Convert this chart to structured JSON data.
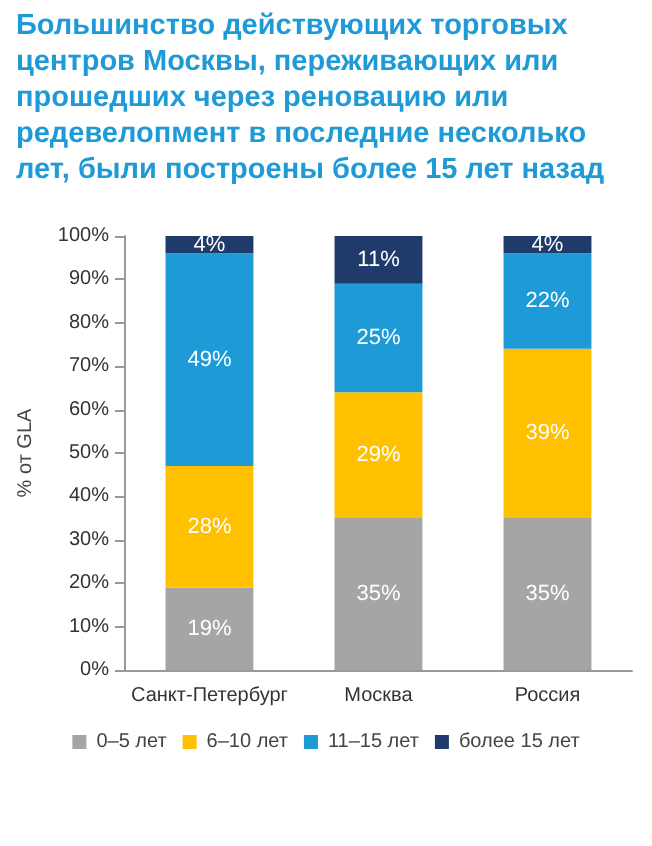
{
  "chart_data": {
    "type": "bar",
    "stacked": true,
    "title": "Большинство действующих торговых центров Москвы, переживающих или прошедших через реновацию или редевелопмент в последние несколько лет, были построены более 15 лет назад",
    "ylabel": "% от GLA",
    "categories": [
      "Санкт-Петербург",
      "Москва",
      "Россия"
    ],
    "series": [
      {
        "name": "0–5 лет",
        "color": "#a5a5a5",
        "values": [
          19,
          35,
          35
        ],
        "value_labels": [
          "19%",
          "35%",
          "35%"
        ]
      },
      {
        "name": "6–10 лет",
        "color": "#ffc000",
        "values": [
          28,
          29,
          39
        ],
        "value_labels": [
          "28%",
          "29%",
          "39%"
        ]
      },
      {
        "name": "11–15 лет",
        "color": "#1e9bd7",
        "values": [
          49,
          25,
          22
        ],
        "value_labels": [
          "49%",
          "25%",
          "22%"
        ]
      },
      {
        "name": "более 15 лет",
        "color": "#1f3b6b",
        "values": [
          4,
          11,
          4
        ],
        "value_labels": [
          "4%",
          "11%",
          "4%"
        ]
      }
    ],
    "ylim": [
      0,
      100
    ],
    "yticks": [
      {
        "value": 0,
        "label": "0%"
      },
      {
        "value": 10,
        "label": "10%"
      },
      {
        "value": 20,
        "label": "20%"
      },
      {
        "value": 30,
        "label": "30%"
      },
      {
        "value": 40,
        "label": "40%"
      },
      {
        "value": 50,
        "label": "50%"
      },
      {
        "value": 60,
        "label": "60%"
      },
      {
        "value": 70,
        "label": "70%"
      },
      {
        "value": 80,
        "label": "80%"
      },
      {
        "value": 90,
        "label": "90%"
      },
      {
        "value": 100,
        "label": "100%"
      }
    ],
    "grid": false,
    "legend": "bottom"
  }
}
